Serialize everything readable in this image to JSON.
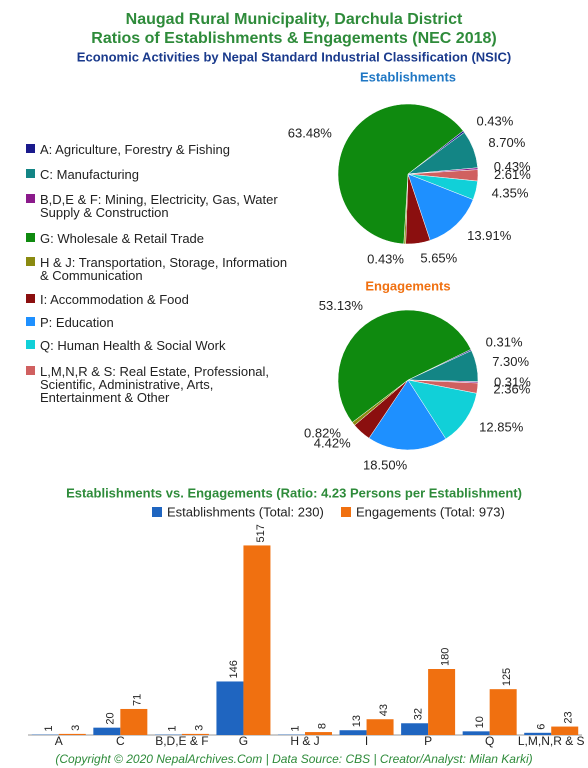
{
  "title": "Naugad Rural Municipality, Darchula District",
  "title2": "Ratios of Establishments & Engagements (NEC 2018)",
  "subtitle": "Economic Activities by Nepal Standard Industrial Classification (NSIC)",
  "footer": "(Copyright © 2020 NepalArchives.Com | Data Source: CBS | Creator/Analyst: Milan Karki)",
  "chart_data": [
    {
      "type": "pie",
      "title": "Establishments",
      "categories": [
        "A: Agriculture, Forestry & Fishing",
        "C: Manufacturing",
        "B,D,E & F: Mining, Electricity, Gas, Water Supply & Construction",
        "G: Wholesale & Retail Trade",
        "H & J: Transportation, Storage, Information & Communication",
        "I: Accommodation & Food",
        "P: Education",
        "Q: Human Health & Social Work",
        "L,M,N,R & S: Real Estate, Professional, Scientific, Administrative, Arts, Entertainment & Other"
      ],
      "values": [
        0.43,
        8.7,
        0.43,
        63.48,
        0.43,
        5.65,
        13.91,
        4.35,
        2.61
      ],
      "value_labels": [
        "0.43%",
        "8.70%",
        "0.43%",
        "63.48%",
        "0.43%",
        "5.65%",
        "13.91%",
        "4.35%",
        "2.61%"
      ],
      "colors": [
        "#1a1a8c",
        "#138585",
        "#8b1a8b",
        "#0f8a0f",
        "#8a8a10",
        "#8b0f0f",
        "#1e90ff",
        "#11d0d8",
        "#d06060"
      ]
    },
    {
      "type": "pie",
      "title": "Engagements",
      "values": [
        0.31,
        7.3,
        0.31,
        53.13,
        0.82,
        4.42,
        18.5,
        12.85,
        2.36
      ],
      "value_labels": [
        "0.31%",
        "7.30%",
        "0.31%",
        "53.13%",
        "0.82%",
        "4.42%",
        "18.50%",
        "12.85%",
        "2.36%"
      ],
      "colors": [
        "#1a1a8c",
        "#138585",
        "#8b1a8b",
        "#0f8a0f",
        "#8a8a10",
        "#8b0f0f",
        "#1e90ff",
        "#11d0d8",
        "#d06060"
      ]
    },
    {
      "type": "bar",
      "title": "Establishments vs. Engagements (Ratio: 4.23 Persons per Establishment)",
      "categories": [
        "A",
        "C",
        "B,D,E & F",
        "G",
        "H & J",
        "I",
        "P",
        "Q",
        "L,M,N,R & S"
      ],
      "series": [
        {
          "name": "Establishments (Total: 230)",
          "color": "#1f65c0",
          "values": [
            1,
            20,
            1,
            146,
            1,
            13,
            32,
            10,
            6
          ]
        },
        {
          "name": "Engagements (Total: 973)",
          "color": "#f07010",
          "values": [
            3,
            71,
            3,
            517,
            8,
            43,
            180,
            125,
            23
          ]
        }
      ],
      "ylim": [
        0,
        540
      ]
    }
  ]
}
